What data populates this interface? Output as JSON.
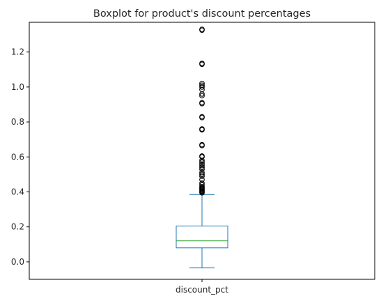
{
  "chart_data": {
    "type": "box",
    "title": "Boxplot for product's discount percentages",
    "categories": [
      "discount_pct"
    ],
    "xlabel": "",
    "ylabel": "",
    "ylim": [
      -0.1,
      1.37
    ],
    "yticks": [
      0.0,
      0.2,
      0.4,
      0.6,
      0.8,
      1.0,
      1.2
    ],
    "ytick_labels": [
      "0.0",
      "0.2",
      "0.4",
      "0.6",
      "0.8",
      "1.0",
      "1.2"
    ],
    "grid": false,
    "legend": "none",
    "series": [
      {
        "category": "discount_pct",
        "whisker_low": -0.035,
        "q1": 0.08,
        "median": 0.12,
        "q3": 0.205,
        "whisker_high": 0.385,
        "outliers": [
          0.395,
          0.4,
          0.405,
          0.41,
          0.415,
          0.42,
          0.425,
          0.43,
          0.44,
          0.45,
          0.47,
          0.49,
          0.5,
          0.51,
          0.53,
          0.54,
          0.55,
          0.56,
          0.57,
          0.58,
          0.6,
          0.605,
          0.665,
          0.67,
          0.755,
          0.76,
          0.825,
          0.83,
          0.905,
          0.91,
          0.95,
          0.96,
          0.985,
          1.0,
          1.01,
          1.02,
          1.13,
          1.135,
          1.325,
          1.33
        ]
      }
    ],
    "colors": {
      "box": "#1f77b4",
      "median": "#2ca02c",
      "outlier_edge": "#000000",
      "axes": "#000000"
    }
  }
}
